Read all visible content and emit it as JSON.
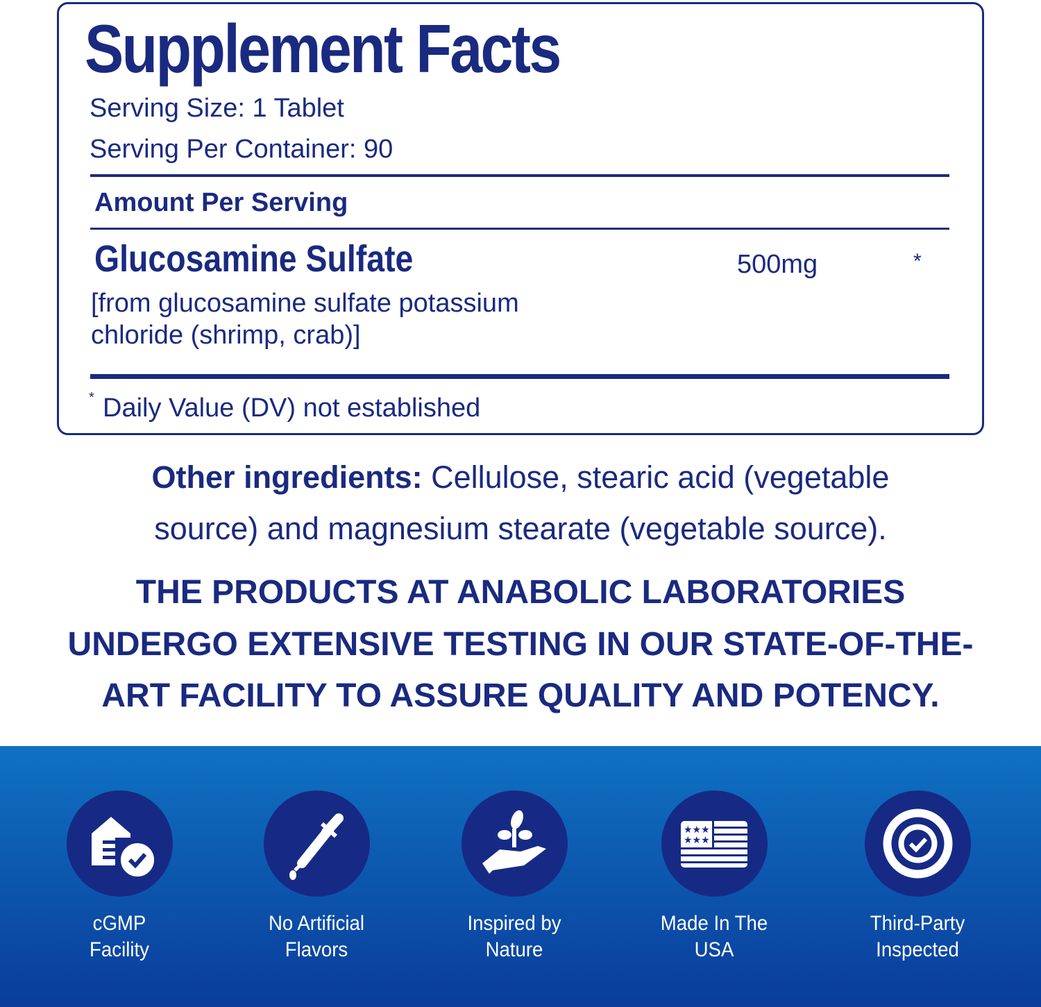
{
  "facts": {
    "title": "Supplement Facts",
    "serving_size": "Serving Size: 1 Tablet",
    "servings_per_container": "Serving Per Container: 90",
    "amount_header": "Amount Per Serving",
    "ingredient_name": "Glucosamine Sulfate",
    "ingredient_source_1": "[from glucosamine sulfate potassium",
    "ingredient_source_2": "chloride (shrimp, crab)]",
    "ingredient_amount": "500mg",
    "ingredient_dv": "*",
    "footnote_mark": "*",
    "footnote": "Daily Value (DV) not established"
  },
  "other_ingredients": {
    "label": "Other ingredients:",
    "text_1": " Cellulose, stearic acid (vegetable",
    "text_2": "source) and magnesium stearate (vegetable source)."
  },
  "statement": [
    "THE PRODUCTS AT ANABOLIC LABORATORIES",
    "UNDERGO EXTENSIVE TESTING IN OUR STATE-OF-THE-",
    "ART FACILITY TO ASSURE QUALITY AND POTENCY."
  ],
  "badges": [
    {
      "icon": "facility-check-icon",
      "line1": "cGMP",
      "line2": "Facility"
    },
    {
      "icon": "dropper-icon",
      "line1": "No Artificial",
      "line2": "Flavors"
    },
    {
      "icon": "hand-plant-icon",
      "line1": "Inspired by",
      "line2": "Nature"
    },
    {
      "icon": "usa-flag-icon",
      "line1": "Made In The",
      "line2": "USA"
    },
    {
      "icon": "seal-check-icon",
      "line1": "Third-Party",
      "line2": "Inspected"
    }
  ],
  "colors": {
    "navy": "#1a2a80",
    "band_top": "#0f72c2",
    "band_bottom": "#0a3c9a",
    "badge": "#162a85"
  }
}
